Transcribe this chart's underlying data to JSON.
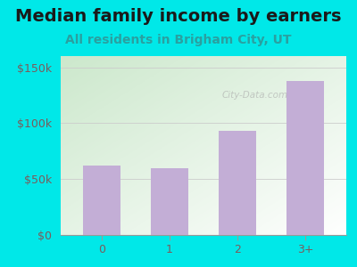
{
  "title": "Median family income by earners",
  "subtitle": "All residents in Brigham City, UT",
  "categories": [
    "0",
    "1",
    "2",
    "3+"
  ],
  "values": [
    62000,
    60000,
    93000,
    138000
  ],
  "bar_color": "#c3aed6",
  "title_color": "#1a1a1a",
  "subtitle_color": "#2aa0a0",
  "outer_bg": "#00e8e8",
  "ylim": [
    0,
    160000
  ],
  "yticks": [
    0,
    50000,
    100000,
    150000
  ],
  "ytick_labels": [
    "$0",
    "$50k",
    "$100k",
    "$150k"
  ],
  "title_fontsize": 14,
  "subtitle_fontsize": 10,
  "tick_color": "#7a5c5c",
  "watermark": "City-Data.com",
  "gradient_top_left": "#d8edd8",
  "gradient_bottom_right": "#f8fff8"
}
